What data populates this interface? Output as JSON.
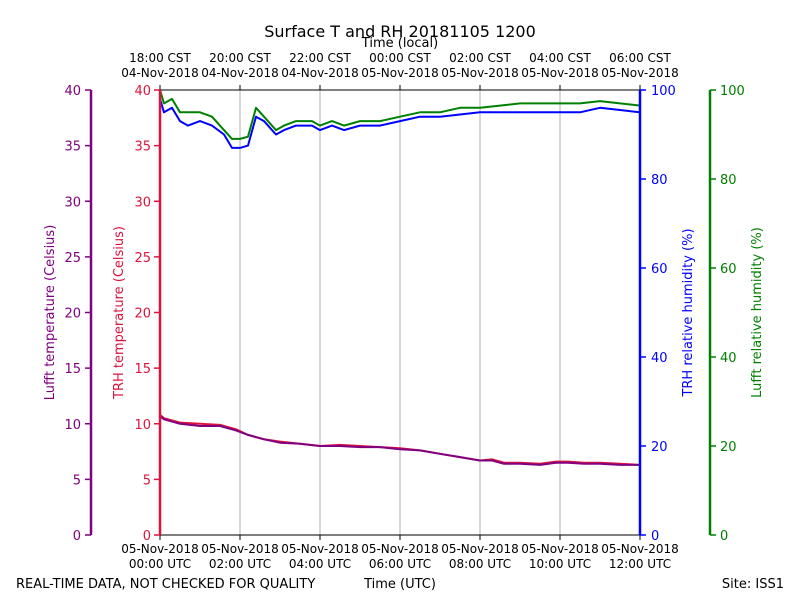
{
  "chart_data": {
    "type": "line",
    "title": "Surface T and RH 20181105 1200",
    "top_axis_title": "Time (local)",
    "xlabel": "Time (UTC)",
    "footer_left": "REAL-TIME DATA, NOT CHECKED FOR QUALITY",
    "footer_right": "Site: ISS1",
    "xlim_hours_utc": [
      0,
      12
    ],
    "x_ticks": [
      {
        "hour": 0,
        "date": "05-Nov-2018",
        "time": "00:00 UTC"
      },
      {
        "hour": 2,
        "date": "05-Nov-2018",
        "time": "02:00 UTC"
      },
      {
        "hour": 4,
        "date": "05-Nov-2018",
        "time": "04:00 UTC"
      },
      {
        "hour": 6,
        "date": "05-Nov-2018",
        "time": "06:00 UTC"
      },
      {
        "hour": 8,
        "date": "05-Nov-2018",
        "time": "08:00 UTC"
      },
      {
        "hour": 10,
        "date": "05-Nov-2018",
        "time": "10:00 UTC"
      },
      {
        "hour": 12,
        "date": "05-Nov-2018",
        "time": "12:00 UTC"
      }
    ],
    "top_ticks": [
      {
        "hour": 0,
        "time": "18:00 CST",
        "date": "04-Nov-2018"
      },
      {
        "hour": 2,
        "time": "20:00 CST",
        "date": "04-Nov-2018"
      },
      {
        "hour": 4,
        "time": "22:00 CST",
        "date": "04-Nov-2018"
      },
      {
        "hour": 6,
        "time": "00:00 CST",
        "date": "05-Nov-2018"
      },
      {
        "hour": 8,
        "time": "02:00 CST",
        "date": "05-Nov-2018"
      },
      {
        "hour": 10,
        "time": "04:00 CST",
        "date": "05-Nov-2018"
      },
      {
        "hour": 12,
        "time": "06:00 CST",
        "date": "05-Nov-2018"
      }
    ],
    "axes": {
      "lufft_temp": {
        "label": "Lufft temperature (Celsius)",
        "ylim": [
          0,
          40
        ],
        "ticks": [
          0,
          5,
          10,
          15,
          20,
          25,
          30,
          35,
          40
        ],
        "color": "#800080"
      },
      "trh_temp": {
        "label": "TRH temperature (Celsius)",
        "ylim": [
          0,
          40
        ],
        "ticks": [
          0,
          5,
          10,
          15,
          20,
          25,
          30,
          35,
          40
        ],
        "color": "#dc143c"
      },
      "trh_rh": {
        "label": "TRH relative humidity (%)",
        "ylim": [
          0,
          100
        ],
        "ticks": [
          0,
          20,
          40,
          60,
          80,
          100
        ],
        "color": "#0000ff"
      },
      "lufft_rh": {
        "label": "Lufft relative humidity (%)",
        "ylim": [
          0,
          100
        ],
        "ticks": [
          0,
          20,
          40,
          60,
          80,
          100
        ],
        "color": "#008000"
      }
    },
    "series": [
      {
        "name": "TRH temperature",
        "axis": "trh_temp",
        "color": "#dc143c",
        "x": [
          0,
          0.1,
          0.5,
          1.0,
          1.5,
          1.9,
          2.2,
          2.6,
          3.0,
          3.5,
          4.0,
          4.5,
          5.0,
          5.5,
          6.0,
          6.5,
          7.0,
          7.5,
          8.0,
          8.3,
          8.6,
          9.0,
          9.5,
          9.9,
          10.2,
          10.6,
          11.0,
          11.5,
          12.0
        ],
        "values": [
          10.8,
          10.5,
          10.1,
          10.0,
          9.9,
          9.5,
          9.0,
          8.6,
          8.4,
          8.2,
          8.0,
          8.1,
          8.0,
          7.9,
          7.8,
          7.6,
          7.3,
          7.0,
          6.7,
          6.8,
          6.5,
          6.5,
          6.4,
          6.6,
          6.6,
          6.5,
          6.5,
          6.4,
          6.3
        ]
      },
      {
        "name": "Lufft temperature",
        "axis": "lufft_temp",
        "color": "#800080",
        "x": [
          0,
          0.1,
          0.5,
          1.0,
          1.5,
          1.9,
          2.2,
          2.6,
          3.0,
          3.5,
          4.0,
          4.5,
          5.0,
          5.5,
          6.0,
          6.5,
          7.0,
          7.5,
          8.0,
          8.3,
          8.6,
          9.0,
          9.5,
          9.9,
          10.2,
          10.6,
          11.0,
          11.5,
          12.0
        ],
        "values": [
          10.7,
          10.4,
          10.0,
          9.8,
          9.8,
          9.4,
          9.0,
          8.6,
          8.3,
          8.2,
          8.0,
          8.0,
          7.9,
          7.9,
          7.7,
          7.6,
          7.3,
          7.0,
          6.7,
          6.7,
          6.4,
          6.4,
          6.3,
          6.5,
          6.5,
          6.4,
          6.4,
          6.3,
          6.3
        ]
      },
      {
        "name": "TRH relative humidity",
        "axis": "trh_rh",
        "color": "#0000ff",
        "x": [
          0,
          0.1,
          0.3,
          0.5,
          0.7,
          1.0,
          1.3,
          1.6,
          1.8,
          2.0,
          2.2,
          2.4,
          2.6,
          2.9,
          3.1,
          3.4,
          3.8,
          4.0,
          4.3,
          4.6,
          5.0,
          5.5,
          6.0,
          6.5,
          7.0,
          7.5,
          8.0,
          8.5,
          9.0,
          9.5,
          10.0,
          10.5,
          11.0,
          11.5,
          12.0
        ],
        "values": [
          98,
          95,
          96,
          93,
          92,
          93,
          92,
          90,
          87,
          87,
          87.5,
          94,
          93,
          90,
          91,
          92,
          92,
          91,
          92,
          91,
          92,
          92,
          93,
          94,
          94,
          94.5,
          95,
          95,
          95,
          95,
          95,
          95,
          96,
          95.5,
          95
        ]
      },
      {
        "name": "Lufft relative humidity",
        "axis": "lufft_rh",
        "color": "#008000",
        "x": [
          0,
          0.1,
          0.3,
          0.5,
          0.7,
          1.0,
          1.3,
          1.6,
          1.8,
          2.0,
          2.2,
          2.4,
          2.6,
          2.9,
          3.1,
          3.4,
          3.8,
          4.0,
          4.3,
          4.6,
          5.0,
          5.5,
          6.0,
          6.5,
          7.0,
          7.5,
          8.0,
          8.5,
          9.0,
          9.5,
          10.0,
          10.5,
          11.0,
          11.5,
          12.0
        ],
        "values": [
          100,
          97,
          98,
          95,
          95,
          95,
          94,
          91,
          89,
          89,
          89.5,
          96,
          94,
          91,
          92,
          93,
          93,
          92,
          93,
          92,
          93,
          93,
          94,
          95,
          95,
          96,
          96,
          96.5,
          97,
          97,
          97,
          97,
          97.5,
          97,
          96.5
        ]
      }
    ]
  }
}
